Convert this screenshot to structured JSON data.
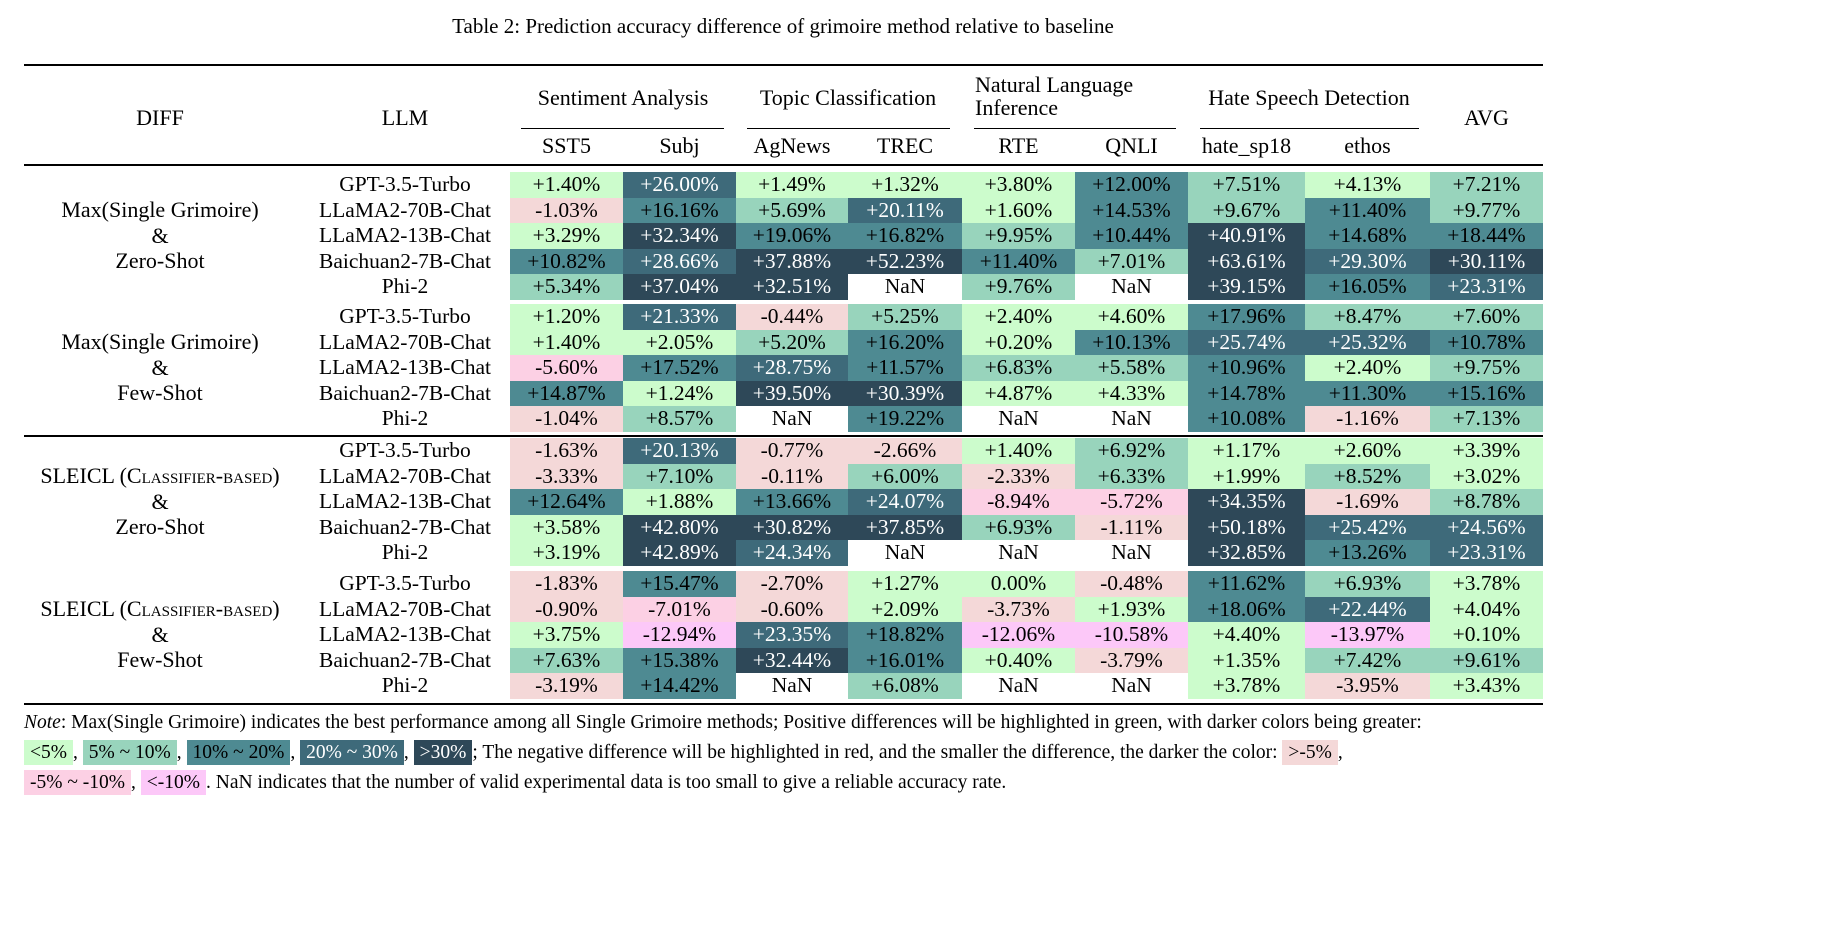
{
  "caption": "Table 2: Prediction accuracy difference of grimoire method relative to baseline",
  "headers": {
    "diff": "DIFF",
    "llm": "LLM",
    "avg": "AVG",
    "groups": [
      {
        "label": "Sentiment Analysis",
        "datasets": [
          "SST5",
          "Subj"
        ]
      },
      {
        "label": "Topic Classification",
        "datasets": [
          "AgNews",
          "TREC"
        ]
      },
      {
        "label_line1": "Natural Language",
        "label_line2": "Inference",
        "datasets": [
          "RTE",
          "QNLI"
        ]
      },
      {
        "label": "Hate Speech Detection",
        "datasets": [
          "hate_sp18",
          "ethos"
        ]
      }
    ]
  },
  "colors": {
    "pos_lt5": "#ccfccc",
    "pos_5_10": "#98d4bc",
    "pos_10_20": "#4e8a92",
    "pos_20_30": "#3e6a7a",
    "pos_gt30": "#2e4858",
    "neg_gt_m5": "#f4d8d8",
    "neg_m5_m10": "#fcd0e4",
    "neg_lt_m10": "#fcc8f8"
  },
  "sections": [
    {
      "label": [
        "Max(Single Grimoire)",
        "&",
        "Zero-Shot"
      ],
      "rows": [
        {
          "llm": "GPT-3.5-Turbo",
          "values": [
            "+1.40%",
            "+26.00%",
            "+1.49%",
            "+1.32%",
            "+3.80%",
            "+12.00%",
            "+7.51%",
            "+4.13%",
            "+7.21%"
          ]
        },
        {
          "llm": "LLaMA2-70B-Chat",
          "values": [
            "-1.03%",
            "+16.16%",
            "+5.69%",
            "+20.11%",
            "+1.60%",
            "+14.53%",
            "+9.67%",
            "+11.40%",
            "+9.77%"
          ]
        },
        {
          "llm": "LLaMA2-13B-Chat",
          "values": [
            "+3.29%",
            "+32.34%",
            "+19.06%",
            "+16.82%",
            "+9.95%",
            "+10.44%",
            "+40.91%",
            "+14.68%",
            "+18.44%"
          ]
        },
        {
          "llm": "Baichuan2-7B-Chat",
          "values": [
            "+10.82%",
            "+28.66%",
            "+37.88%",
            "+52.23%",
            "+11.40%",
            "+7.01%",
            "+63.61%",
            "+29.30%",
            "+30.11%"
          ]
        },
        {
          "llm": "Phi-2",
          "values": [
            "+5.34%",
            "+37.04%",
            "+32.51%",
            "NaN",
            "+9.76%",
            "NaN",
            "+39.15%",
            "+16.05%",
            "+23.31%"
          ]
        }
      ]
    },
    {
      "label": [
        "Max(Single Grimoire)",
        "&",
        "Few-Shot"
      ],
      "rows": [
        {
          "llm": "GPT-3.5-Turbo",
          "values": [
            "+1.20%",
            "+21.33%",
            "-0.44%",
            "+5.25%",
            "+2.40%",
            "+4.60%",
            "+17.96%",
            "+8.47%",
            "+7.60%"
          ]
        },
        {
          "llm": "LLaMA2-70B-Chat",
          "values": [
            "+1.40%",
            "+2.05%",
            "+5.20%",
            "+16.20%",
            "+0.20%",
            "+10.13%",
            "+25.74%",
            "+25.32%",
            "+10.78%"
          ]
        },
        {
          "llm": "LLaMA2-13B-Chat",
          "values": [
            "-5.60%",
            "+17.52%",
            "+28.75%",
            "+11.57%",
            "+6.83%",
            "+5.58%",
            "+10.96%",
            "+2.40%",
            "+9.75%"
          ]
        },
        {
          "llm": "Baichuan2-7B-Chat",
          "values": [
            "+14.87%",
            "+1.24%",
            "+39.50%",
            "+30.39%",
            "+4.87%",
            "+4.33%",
            "+14.78%",
            "+11.30%",
            "+15.16%"
          ]
        },
        {
          "llm": "Phi-2",
          "values": [
            "-1.04%",
            "+8.57%",
            "NaN",
            "+19.22%",
            "NaN",
            "NaN",
            "+10.08%",
            "-1.16%",
            "+7.13%"
          ]
        }
      ]
    },
    {
      "label": [
        "SLEICL (Classifier-based)",
        "&",
        "Zero-Shot"
      ],
      "rows": [
        {
          "llm": "GPT-3.5-Turbo",
          "values": [
            "-1.63%",
            "+20.13%",
            "-0.77%",
            "-2.66%",
            "+1.40%",
            "+6.92%",
            "+1.17%",
            "+2.60%",
            "+3.39%"
          ]
        },
        {
          "llm": "LLaMA2-70B-Chat",
          "values": [
            "-3.33%",
            "+7.10%",
            "-0.11%",
            "+6.00%",
            "-2.33%",
            "+6.33%",
            "+1.99%",
            "+8.52%",
            "+3.02%"
          ]
        },
        {
          "llm": "LLaMA2-13B-Chat",
          "values": [
            "+12.64%",
            "+1.88%",
            "+13.66%",
            "+24.07%",
            "-8.94%",
            "-5.72%",
            "+34.35%",
            "-1.69%",
            "+8.78%"
          ]
        },
        {
          "llm": "Baichuan2-7B-Chat",
          "values": [
            "+3.58%",
            "+42.80%",
            "+30.82%",
            "+37.85%",
            "+6.93%",
            "-1.11%",
            "+50.18%",
            "+25.42%",
            "+24.56%"
          ]
        },
        {
          "llm": "Phi-2",
          "values": [
            "+3.19%",
            "+42.89%",
            "+24.34%",
            "NaN",
            "NaN",
            "NaN",
            "+32.85%",
            "+13.26%",
            "+23.31%"
          ]
        }
      ]
    },
    {
      "label": [
        "SLEICL (Classifier-based)",
        "&",
        "Few-Shot"
      ],
      "rows": [
        {
          "llm": "GPT-3.5-Turbo",
          "values": [
            "-1.83%",
            "+15.47%",
            "-2.70%",
            "+1.27%",
            "0.00%",
            "-0.48%",
            "+11.62%",
            "+6.93%",
            "+3.78%"
          ]
        },
        {
          "llm": "LLaMA2-70B-Chat",
          "values": [
            "-0.90%",
            "-7.01%",
            "-0.60%",
            "+2.09%",
            "-3.73%",
            "+1.93%",
            "+18.06%",
            "+22.44%",
            "+4.04%"
          ]
        },
        {
          "llm": "LLaMA2-13B-Chat",
          "values": [
            "+3.75%",
            "-12.94%",
            "+23.35%",
            "+18.82%",
            "-12.06%",
            "-10.58%",
            "+4.40%",
            "-13.97%",
            "+0.10%"
          ]
        },
        {
          "llm": "Baichuan2-7B-Chat",
          "values": [
            "+7.63%",
            "+15.38%",
            "+32.44%",
            "+16.01%",
            "+0.40%",
            "-3.79%",
            "+1.35%",
            "+7.42%",
            "+9.61%"
          ]
        },
        {
          "llm": "Phi-2",
          "values": [
            "-3.19%",
            "+14.42%",
            "NaN",
            "+6.08%",
            "NaN",
            "NaN",
            "+3.78%",
            "-3.95%",
            "+3.43%"
          ]
        }
      ]
    }
  ],
  "note": {
    "prefix_italic": "Note",
    "text1": ": Max(Single Grimoire) indicates the best performance among all Single Grimoire methods; Positive differences will be highlighted in green, with darker colors being greater:",
    "pos_legend": [
      "<5%",
      "5% ~ 10%",
      "10% ~ 20%",
      "20% ~ 30%",
      ">30%"
    ],
    "text2": "; The negative difference will be highlighted in red, and the smaller the difference, the darker the color:",
    "neg_legend": [
      ">-5%",
      "-5% ~ -10%",
      "<-10%"
    ],
    "text3": ". NaN indicates that the number of valid experimental data is too small to give a reliable accuracy rate."
  }
}
